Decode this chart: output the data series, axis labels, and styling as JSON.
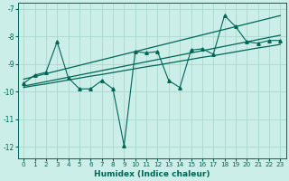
{
  "xlabel": "Humidex (Indice chaleur)",
  "bg_color": "#cceee8",
  "grid_color": "#aad8d0",
  "line_color": "#006655",
  "x_values": [
    0,
    1,
    2,
    3,
    4,
    5,
    6,
    7,
    8,
    9,
    10,
    11,
    12,
    13,
    14,
    15,
    16,
    17,
    18,
    19,
    20,
    21,
    22,
    23
  ],
  "y_main": [
    -9.7,
    -9.4,
    -9.3,
    -8.2,
    -9.5,
    -9.9,
    -9.9,
    -9.6,
    -9.9,
    -11.95,
    -8.55,
    -8.6,
    -8.55,
    -9.6,
    -9.85,
    -8.5,
    -8.45,
    -8.65,
    -7.25,
    -7.65,
    -8.2,
    -8.25,
    -8.15,
    -8.15
  ],
  "y_line1": [
    -9.55,
    -9.45,
    -9.35,
    -9.25,
    -9.15,
    -9.05,
    -8.95,
    -8.85,
    -8.75,
    -8.65,
    -8.55,
    -8.45,
    -8.35,
    -8.25,
    -8.15,
    -8.05,
    -7.95,
    -7.85,
    -7.75,
    -7.65,
    -7.55,
    -7.45,
    -7.35,
    -7.25
  ],
  "y_line2": [
    -9.8,
    -9.72,
    -9.64,
    -9.56,
    -9.48,
    -9.4,
    -9.32,
    -9.24,
    -9.16,
    -9.08,
    -9.0,
    -8.92,
    -8.84,
    -8.76,
    -8.68,
    -8.6,
    -8.52,
    -8.44,
    -8.36,
    -8.28,
    -8.2,
    -8.12,
    -8.04,
    -7.96
  ],
  "y_line3": [
    -9.85,
    -9.78,
    -9.72,
    -9.65,
    -9.58,
    -9.51,
    -9.44,
    -9.38,
    -9.31,
    -9.24,
    -9.17,
    -9.1,
    -9.04,
    -8.97,
    -8.9,
    -8.83,
    -8.76,
    -8.7,
    -8.63,
    -8.56,
    -8.49,
    -8.42,
    -8.36,
    -8.29
  ],
  "ylim": [
    -12.4,
    -6.8
  ],
  "yticks": [
    -12,
    -11,
    -10,
    -9,
    -8,
    -7
  ],
  "xlim": [
    -0.5,
    23.5
  ],
  "xticks": [
    0,
    1,
    2,
    3,
    4,
    5,
    6,
    7,
    8,
    9,
    10,
    11,
    12,
    13,
    14,
    15,
    16,
    17,
    18,
    19,
    20,
    21,
    22,
    23
  ]
}
